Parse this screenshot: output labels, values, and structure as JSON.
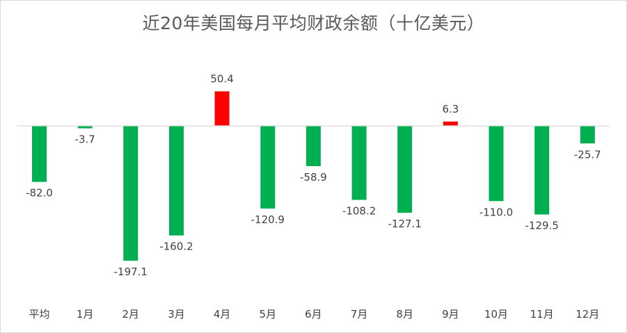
{
  "chart_data": {
    "type": "bar",
    "title": "近20年美国每月平均财政余额（十亿美元）",
    "xlabel": "",
    "ylabel": "",
    "categories": [
      "平均",
      "1月",
      "2月",
      "3月",
      "4月",
      "5月",
      "6月",
      "7月",
      "8月",
      "9月",
      "10月",
      "11月",
      "12月"
    ],
    "values": [
      -82.0,
      -3.7,
      -197.1,
      -160.2,
      50.4,
      -120.9,
      -58.9,
      -108.2,
      -127.1,
      6.3,
      -110.0,
      -129.5,
      -25.7
    ],
    "data_labels": [
      "-82.0",
      "-3.7",
      "-197.1",
      "-160.2",
      "50.4",
      "-120.9",
      "-58.9",
      "-108.2",
      "-127.1",
      "6.3",
      "-110.0",
      "-129.5",
      "-25.7"
    ],
    "grid": false,
    "legend": "none",
    "colors": {
      "negative": "#00b050",
      "positive": "#ff0000",
      "axis": "#d9d9d9"
    }
  }
}
